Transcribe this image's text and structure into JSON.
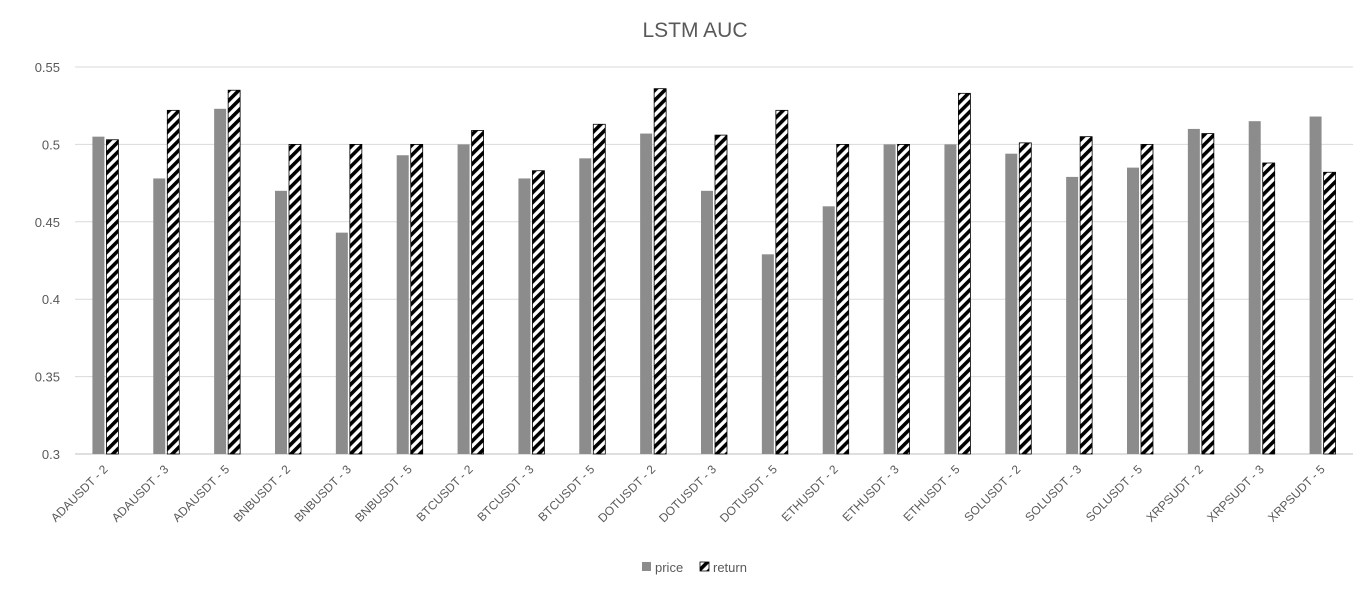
{
  "chart_data": {
    "type": "bar",
    "title": "LSTM AUC",
    "xlabel": "",
    "ylabel": "",
    "ylim": [
      0.3,
      0.55
    ],
    "yticks": [
      "0.3",
      "0.35",
      "0.4",
      "0.45",
      "0.5",
      "0.55"
    ],
    "grid": true,
    "legend_position": "bottom",
    "categories": [
      "ADAUSDT - 2",
      "ADAUSDT - 3",
      "ADAUSDT - 5",
      "BNBUSDT - 2",
      "BNBUSDT - 3",
      "BNBUSDT - 5",
      "BTCUSDT - 2",
      "BTCUSDT - 3",
      "BTCUSDT - 5",
      "DOTUSDT - 2",
      "DOTUSDT - 3",
      "DOTUSDT - 5",
      "ETHUSDT - 2",
      "ETHUSDT - 3",
      "ETHUSDT - 5",
      "SOLUSDT - 2",
      "SOLUSDT - 3",
      "SOLUSDT - 5",
      "XRPSUDT - 2",
      "XRPSUDT - 3",
      "XRPSUDT - 5"
    ],
    "series": [
      {
        "name": "price",
        "color": "#8c8c8c",
        "pattern": "solid",
        "values": [
          0.505,
          0.478,
          0.523,
          0.47,
          0.443,
          0.493,
          0.5,
          0.478,
          0.491,
          0.507,
          0.47,
          0.429,
          0.46,
          0.5,
          0.5,
          0.494,
          0.479,
          0.485,
          0.51,
          0.515,
          0.518
        ]
      },
      {
        "name": "return",
        "color": "#000000",
        "pattern": "diagonal-stripes",
        "values": [
          0.503,
          0.522,
          0.535,
          0.5,
          0.5,
          0.5,
          0.509,
          0.483,
          0.513,
          0.536,
          0.506,
          0.522,
          0.5,
          0.5,
          0.533,
          0.501,
          0.505,
          0.5,
          0.507,
          0.488,
          0.482
        ]
      }
    ]
  }
}
